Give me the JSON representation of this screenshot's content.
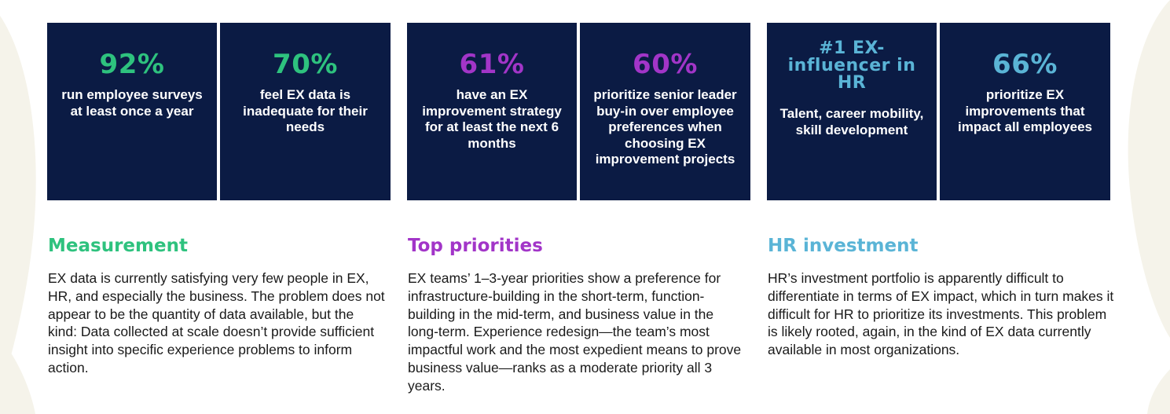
{
  "colors": {
    "card_bg": "#0b1b44",
    "green": "#2ec27e",
    "purple": "#a235c8",
    "blue": "#5ab4d6",
    "decor": "#f5f3ea"
  },
  "cards": [
    {
      "stat": "92%",
      "desc": "run employee surveys at least once a year",
      "color": "#2ec27e"
    },
    {
      "stat": "70%",
      "desc": "feel EX data is inadequate for their needs",
      "color": "#2ec27e"
    },
    {
      "stat": "61%",
      "desc": "have an EX improvement strategy for at least the next 6 months",
      "color": "#a235c8"
    },
    {
      "stat": "60%",
      "desc": "prioritize senior leader buy-in over employee preferences when choosing EX improvement projects",
      "color": "#a235c8"
    },
    {
      "stat": "#1 EX-influencer in HR",
      "desc": "Talent, career mobility, skill development",
      "color": "#5ab4d6"
    },
    {
      "stat": "66%",
      "desc": "prioritize EX improvements that impact all employees",
      "color": "#5ab4d6"
    }
  ],
  "sections": [
    {
      "title": "Measurement",
      "color": "#2ec27e",
      "body": "EX data is currently satisfying very few people in EX, HR, and especially the business. The problem does not appear to be the quantity of data available, but the kind: Data collected at scale doesn’t provide sufficient insight into specific experience problems to inform action."
    },
    {
      "title": "Top priorities",
      "color": "#a235c8",
      "body": "EX teams’ 1–3-year priorities show a preference for infrastructure-building in the short-term, function-building in the mid-term, and business value in the long-term. Experience redesign—the team’s most impactful work and the most expedient means to prove business value—ranks as a moderate priority all 3 years."
    },
    {
      "title": "HR investment",
      "color": "#5ab4d6",
      "body": "HR’s investment portfolio is apparently difficult to differentiate in terms of EX impact, which in turn makes it difficult for HR to prioritize its investments. This problem is likely rooted, again, in the kind of EX data currently available in most organizations."
    }
  ]
}
